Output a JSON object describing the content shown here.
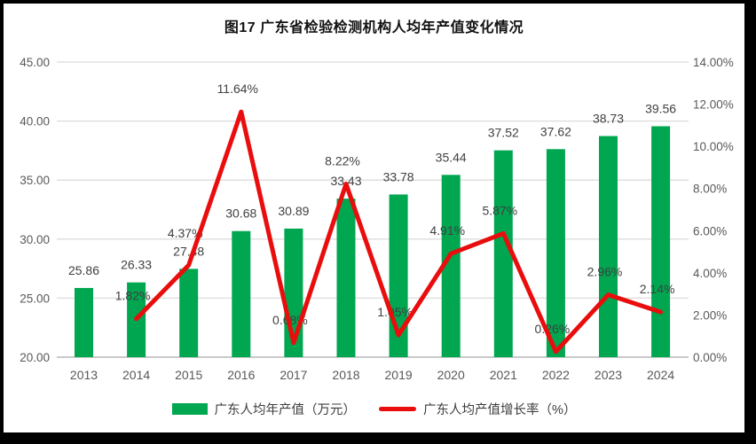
{
  "title": "图17  广东省检验检测机构人均年产值变化情况",
  "legend": [
    {
      "label": "广东人均年产值（万元）",
      "marker": "bar-swatch",
      "color": "#00A650"
    },
    {
      "label": "广东人均产值增长率（%）",
      "marker": "line-swatch",
      "color": "#E90D0D"
    }
  ],
  "colors": {
    "bar": "#00A650",
    "line": "#E90D0D",
    "gridline": "#DCDCDC",
    "axis_line": "#C9C9C9",
    "axis_text": "#595959",
    "data_label_text": "#404040",
    "frame": "#000000"
  },
  "chart_data": {
    "type": "combo (bar + line)",
    "title": "图17  广东省检验检测机构人均年产值变化情况",
    "categories": [
      "2013",
      "2014",
      "2015",
      "2016",
      "2017",
      "2018",
      "2019",
      "2020",
      "2021",
      "2022",
      "2023",
      "2024"
    ],
    "series": [
      {
        "name": "广东人均年产值（万元）",
        "type": "bar",
        "axis": "left",
        "color": "#00A650",
        "values": [
          25.86,
          26.33,
          27.48,
          30.68,
          30.89,
          33.43,
          33.78,
          35.44,
          37.52,
          37.62,
          38.73,
          39.56
        ]
      },
      {
        "name": "广东人均产值增长率（%）",
        "type": "line",
        "axis": "right",
        "color": "#E90D0D",
        "values": [
          null,
          1.82,
          4.37,
          11.64,
          0.68,
          8.22,
          1.05,
          4.91,
          5.87,
          0.26,
          2.96,
          2.14
        ]
      }
    ],
    "left_axis": {
      "min": 20,
      "max": 45,
      "step": 5,
      "ticks": [
        "45.00",
        "40.00",
        "35.00",
        "30.00",
        "25.00",
        "20.00"
      ]
    },
    "right_axis": {
      "min": 0,
      "max": 14,
      "step": 2,
      "ticks": [
        "14.00%",
        "12.00%",
        "10.00%",
        "8.00%",
        "6.00%",
        "4.00%",
        "2.00%",
        "0.00%"
      ]
    },
    "data_labels": true,
    "grid": true,
    "legend_position": "bottom",
    "label_offsets": {
      "line_label_default_dy": -21,
      "line_label_overrides": {
        "2": -31
      },
      "line_label_dx": -4,
      "bar_label_dy": -15
    }
  }
}
